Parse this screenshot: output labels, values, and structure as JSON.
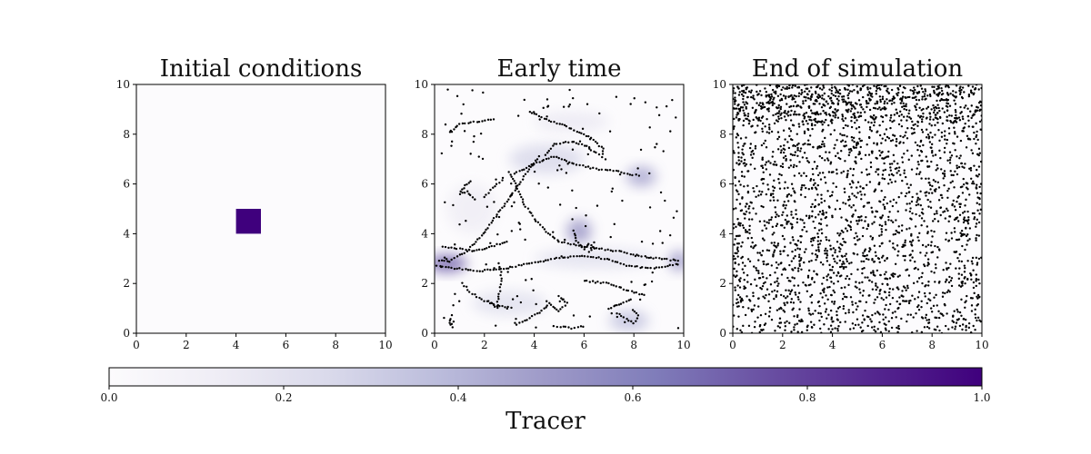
{
  "chart_data": [
    {
      "type": "heatmap",
      "title": "Initial conditions",
      "xlim": [
        0,
        10
      ],
      "ylim": [
        0,
        10
      ],
      "xticks": [
        "0",
        "2",
        "4",
        "6",
        "8",
        "10"
      ],
      "yticks": [
        "0",
        "2",
        "4",
        "6",
        "8",
        "10"
      ],
      "tracer_patches": [
        {
          "x0": 4.0,
          "x1": 5.0,
          "y0": 4.0,
          "y1": 5.0,
          "value": 1.0
        }
      ],
      "particles": []
    },
    {
      "type": "heatmap",
      "title": "Early time",
      "xlim": [
        0,
        10
      ],
      "ylim": [
        0,
        10
      ],
      "xticks": [
        "0",
        "2",
        "4",
        "6",
        "8",
        "10"
      ],
      "yticks": [
        "0",
        "2",
        "4",
        "6",
        "8",
        "10"
      ],
      "tracer_patches": [
        {
          "x": 0.5,
          "y": 2.8,
          "rx": 0.8,
          "ry": 0.35,
          "value": 0.7
        },
        {
          "x": 8.3,
          "y": 6.3,
          "rx": 0.6,
          "ry": 0.4,
          "value": 0.45
        },
        {
          "x": 5.8,
          "y": 4.1,
          "rx": 0.5,
          "ry": 0.5,
          "value": 0.5
        },
        {
          "x": 9.8,
          "y": 2.9,
          "rx": 0.4,
          "ry": 0.4,
          "value": 0.5
        },
        {
          "x": 7.8,
          "y": 0.5,
          "rx": 0.8,
          "ry": 0.4,
          "value": 0.35
        },
        {
          "x": 4.5,
          "y": 7.0,
          "rx": 1.5,
          "ry": 0.6,
          "value": 0.25
        },
        {
          "x": 3.0,
          "y": 1.2,
          "rx": 1.5,
          "ry": 0.5,
          "value": 0.2
        },
        {
          "x": 6.5,
          "y": 3.0,
          "rx": 2.5,
          "ry": 0.4,
          "value": 0.2
        },
        {
          "x": 1.5,
          "y": 5.0,
          "rx": 1.0,
          "ry": 1.0,
          "value": 0.12
        },
        {
          "x": 5.5,
          "y": 8.5,
          "rx": 1.5,
          "ry": 0.4,
          "value": 0.15
        }
      ],
      "particles": {
        "curves": [
          [
            [
              3.8,
              8.9
            ],
            [
              4.5,
              8.6
            ],
            [
              5.3,
              8.3
            ],
            [
              6.2,
              7.9
            ],
            [
              6.8,
              7.4
            ],
            [
              6.7,
              7.1
            ],
            [
              6.1,
              7.5
            ],
            [
              5.5,
              7.7
            ],
            [
              4.8,
              7.6
            ],
            [
              4.4,
              7.1
            ]
          ],
          [
            [
              3.2,
              6.4
            ],
            [
              4.0,
              6.8
            ],
            [
              4.8,
              7.1
            ],
            [
              5.6,
              6.8
            ],
            [
              6.5,
              6.6
            ],
            [
              7.4,
              6.5
            ],
            [
              8.3,
              6.3
            ]
          ],
          [
            [
              4.2,
              7.1
            ],
            [
              3.8,
              6.6
            ],
            [
              3.4,
              6.0
            ],
            [
              2.9,
              5.3
            ],
            [
              2.4,
              4.6
            ],
            [
              1.9,
              3.9
            ],
            [
              1.3,
              3.3
            ],
            [
              0.6,
              2.9
            ],
            [
              0.1,
              2.9
            ]
          ],
          [
            [
              1.6,
              5.4
            ],
            [
              1.3,
              5.7
            ],
            [
              1.0,
              5.6
            ],
            [
              1.3,
              6.0
            ],
            [
              1.5,
              6.2
            ]
          ],
          [
            [
              3.0,
              6.5
            ],
            [
              3.3,
              5.9
            ],
            [
              3.6,
              5.2
            ],
            [
              4.0,
              4.6
            ],
            [
              4.5,
              4.1
            ],
            [
              5.0,
              3.7
            ],
            [
              5.8,
              3.5
            ],
            [
              6.6,
              3.4
            ],
            [
              7.4,
              3.3
            ],
            [
              8.2,
              3.1
            ],
            [
              9.0,
              3.0
            ],
            [
              9.9,
              2.9
            ]
          ],
          [
            [
              0.1,
              2.7
            ],
            [
              0.9,
              2.6
            ],
            [
              1.8,
              2.5
            ],
            [
              2.8,
              2.6
            ],
            [
              3.8,
              2.8
            ],
            [
              4.8,
              3.0
            ],
            [
              5.8,
              3.1
            ],
            [
              6.8,
              3.0
            ],
            [
              7.8,
              2.7
            ],
            [
              8.8,
              2.6
            ],
            [
              9.9,
              2.8
            ]
          ],
          [
            [
              5.6,
              4.1
            ],
            [
              5.7,
              3.7
            ],
            [
              6.0,
              3.4
            ],
            [
              6.2,
              3.6
            ],
            [
              6.4,
              3.4
            ],
            [
              6.1,
              3.2
            ]
          ],
          [
            [
              0.3,
              3.5
            ],
            [
              0.9,
              3.4
            ],
            [
              1.6,
              3.3
            ],
            [
              2.3,
              3.5
            ],
            [
              3.0,
              3.7
            ]
          ],
          [
            [
              5.0,
              1.5
            ],
            [
              5.3,
              1.2
            ],
            [
              5.0,
              0.9
            ],
            [
              4.6,
              1.2
            ],
            [
              4.3,
              0.9
            ],
            [
              3.6,
              0.5
            ],
            [
              3.2,
              0.3
            ]
          ],
          [
            [
              7.3,
              0.8
            ],
            [
              7.7,
              0.6
            ],
            [
              8.0,
              0.4
            ],
            [
              8.2,
              0.7
            ],
            [
              7.9,
              1.0
            ]
          ],
          [
            [
              2.6,
              2.8
            ],
            [
              2.7,
              2.2
            ],
            [
              2.6,
              1.6
            ],
            [
              2.5,
              1.0
            ],
            [
              2.1,
              1.4
            ]
          ],
          [
            [
              1.1,
              2.0
            ],
            [
              1.5,
              1.6
            ],
            [
              2.0,
              1.3
            ],
            [
              2.5,
              1.1
            ],
            [
              3.2,
              1.0
            ]
          ],
          [
            [
              4.8,
              0.3
            ],
            [
              5.5,
              0.2
            ],
            [
              6.1,
              0.3
            ]
          ],
          [
            [
              0.7,
              0.7
            ],
            [
              0.6,
              0.4
            ],
            [
              0.8,
              0.2
            ]
          ],
          [
            [
              0.6,
              8.1
            ],
            [
              1.0,
              8.4
            ],
            [
              1.7,
              8.5
            ],
            [
              2.5,
              8.6
            ]
          ],
          [
            [
              2.0,
              5.5
            ],
            [
              2.4,
              5.9
            ],
            [
              2.8,
              6.2
            ]
          ],
          [
            [
              6.0,
              2.1
            ],
            [
              7.0,
              2.0
            ],
            [
              7.8,
              1.7
            ],
            [
              8.5,
              1.5
            ]
          ],
          [
            [
              7.0,
              1.0
            ],
            [
              7.5,
              1.2
            ],
            [
              8.0,
              1.4
            ]
          ]
        ],
        "scatter_region": [
          0.2,
          0.2,
          9.8,
          9.8
        ],
        "scatter_count": 160
      }
    },
    {
      "type": "scatter",
      "title": "End of simulation",
      "xlim": [
        0,
        10
      ],
      "ylim": [
        0,
        10
      ],
      "xticks": [
        "0",
        "2",
        "4",
        "6",
        "8",
        "10"
      ],
      "yticks": [
        "0",
        "2",
        "4",
        "6",
        "8",
        "10"
      ],
      "tracer_patches": [],
      "particles": {
        "dense_band": [
          0.0,
          8.5,
          10.0,
          10.0
        ],
        "dense_band_count": 420,
        "uniform_region": [
          0.0,
          0.0,
          10.0,
          10.0
        ],
        "uniform_count": 2400
      }
    }
  ],
  "colorbar": {
    "label": "Tracer",
    "ticks": [
      "0.0",
      "0.2",
      "0.4",
      "0.6",
      "0.8",
      "1.0"
    ],
    "range": [
      0.0,
      1.0
    ],
    "colors": [
      "#fcfbfd",
      "#efedf5",
      "#dadaeb",
      "#bcbddc",
      "#9e9ac8",
      "#807dba",
      "#6a51a3",
      "#54278f",
      "#3f007d"
    ]
  }
}
